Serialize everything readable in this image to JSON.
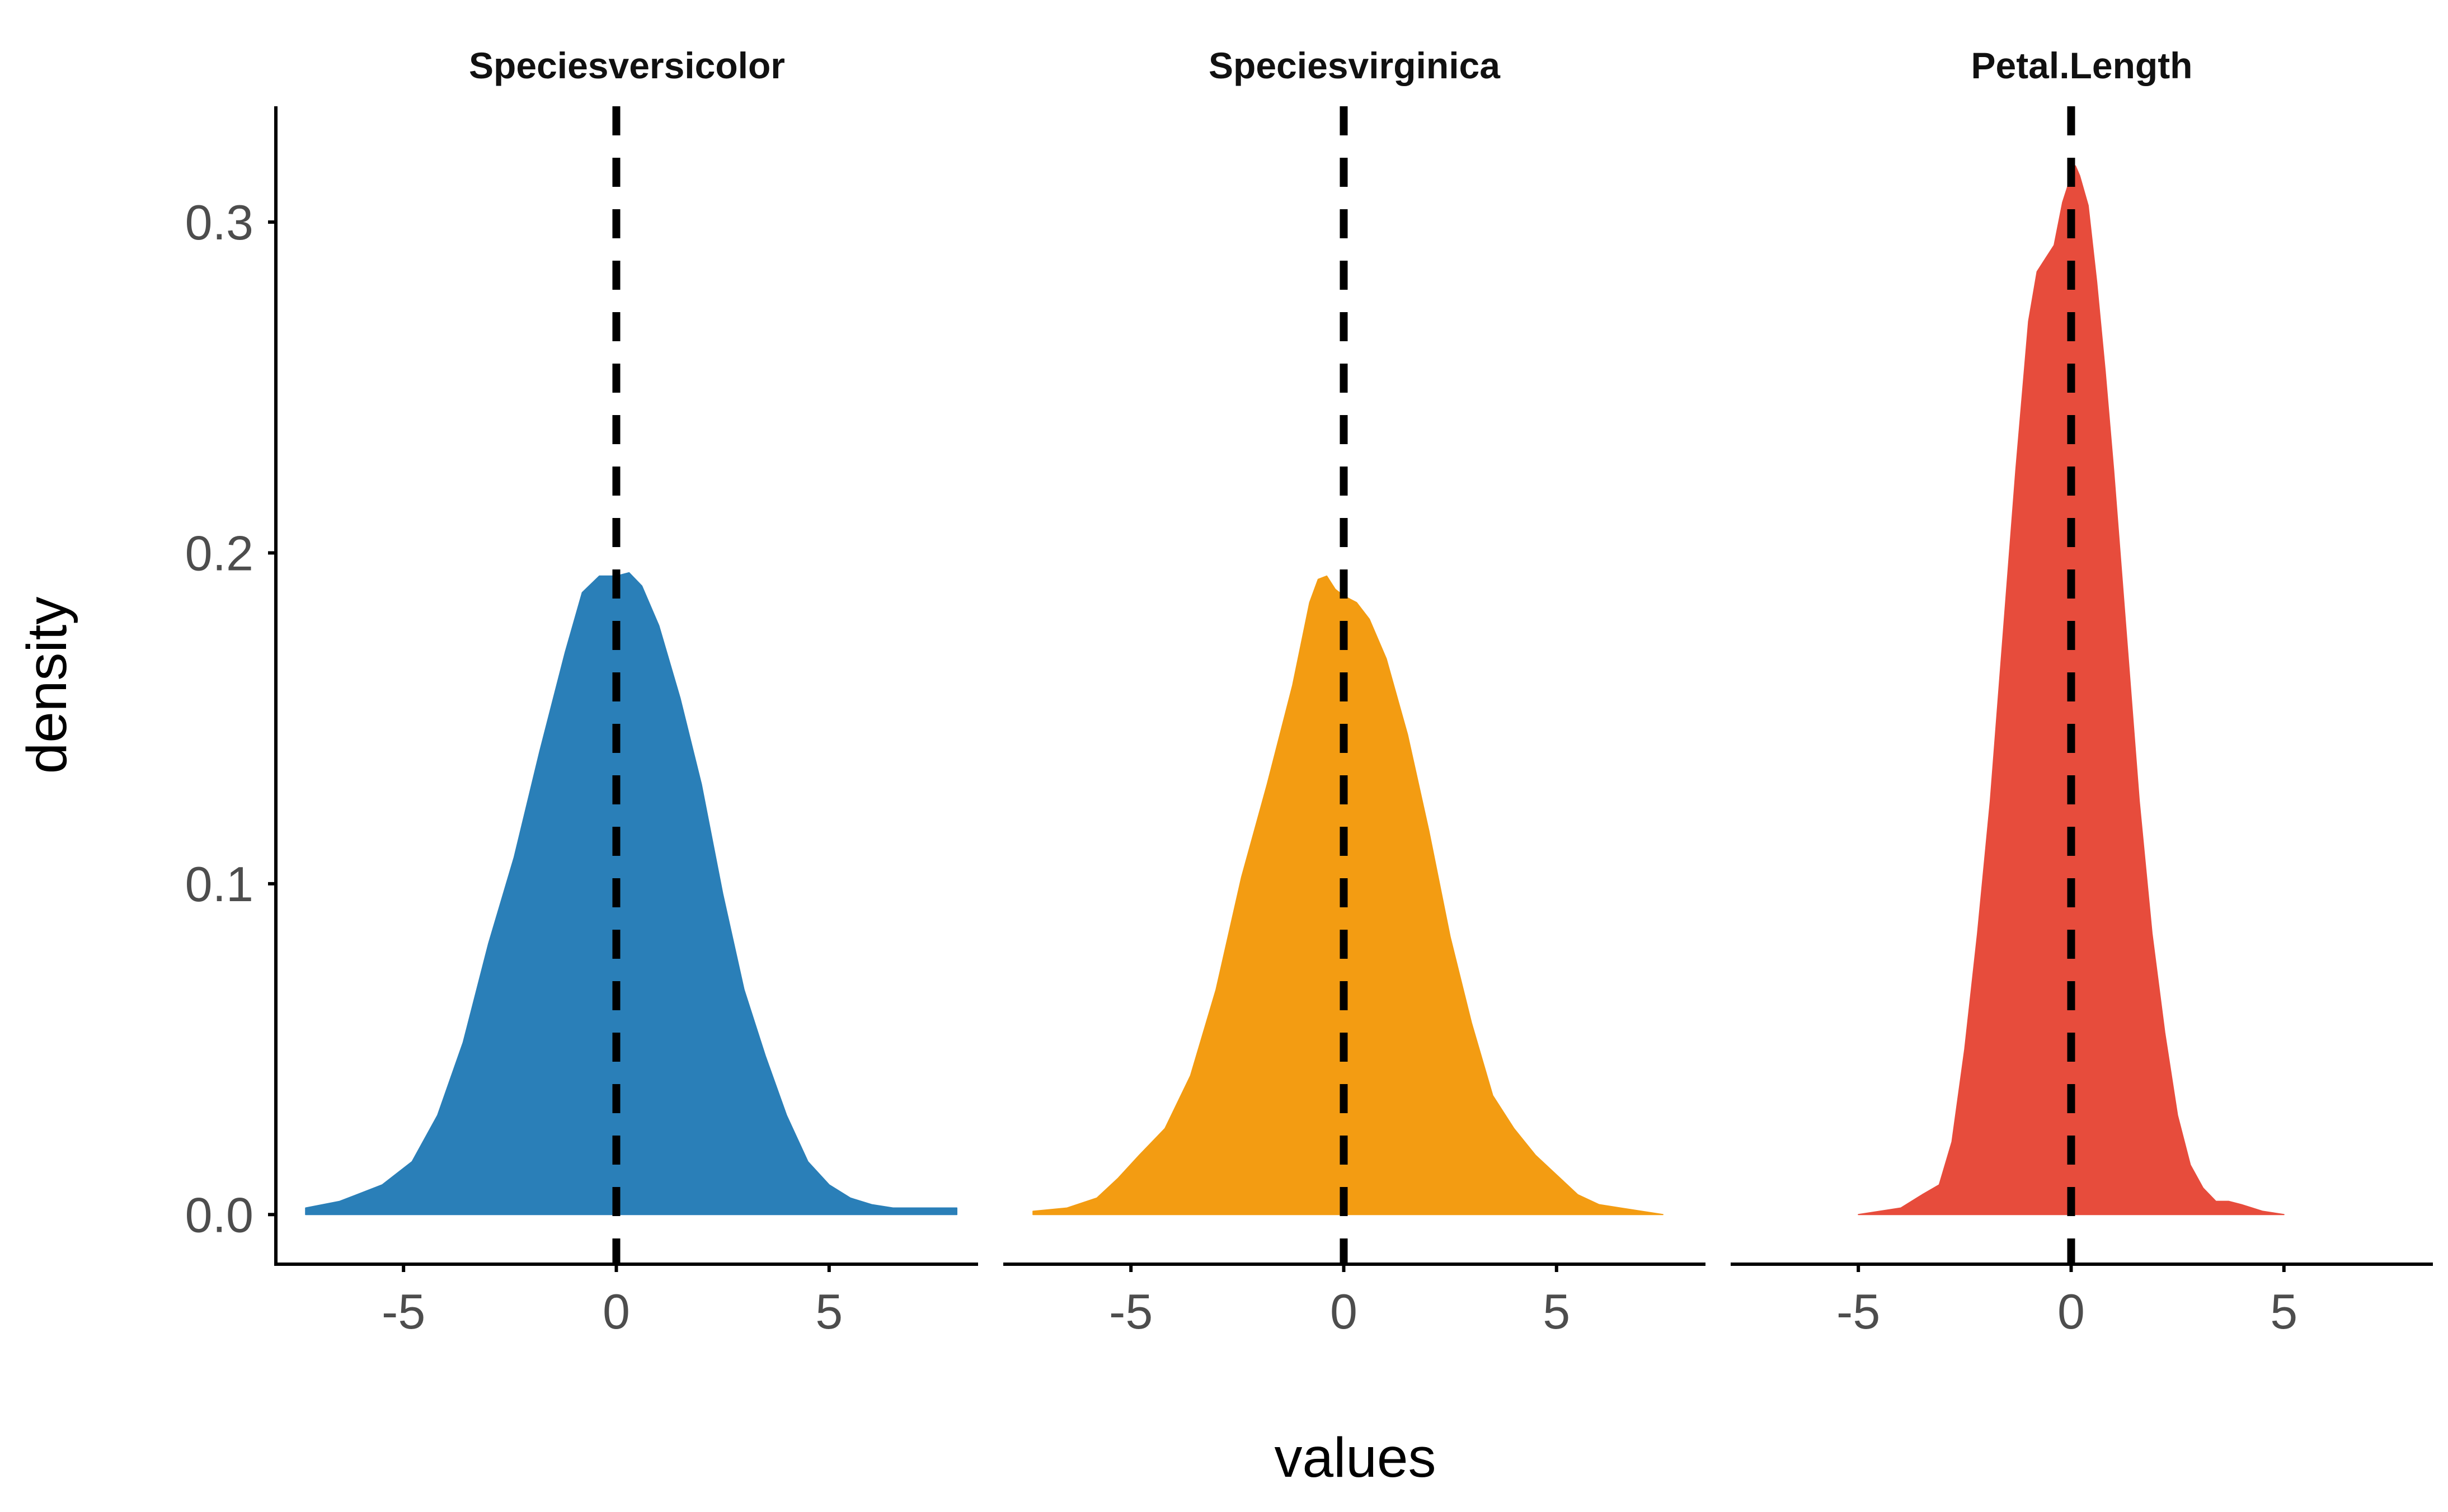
{
  "chart_data": {
    "type": "area",
    "xlabel": "values",
    "ylabel": "density",
    "xlim": [
      -8,
      8.5
    ],
    "ylim": [
      -0.015,
      0.335
    ],
    "x_ticks": [
      -5,
      0,
      5
    ],
    "y_ticks": [
      0.0,
      0.1,
      0.2,
      0.3
    ],
    "x_tick_labels": [
      "-5",
      "0",
      "5"
    ],
    "y_tick_labels": [
      "0.0",
      "0.1",
      "0.2",
      "0.3"
    ],
    "reference_line": {
      "x": 0,
      "style": "dashed",
      "color": "#000000"
    },
    "grid": false,
    "legend": "none",
    "panels": [
      {
        "title": "Speciesversicolor",
        "color": "#2a7fb8",
        "x": [
          -7.3,
          -6.5,
          -5.5,
          -4.8,
          -4.2,
          -3.6,
          -3.0,
          -2.4,
          -1.8,
          -1.2,
          -0.8,
          -0.4,
          0.0,
          0.3,
          0.6,
          1.0,
          1.5,
          2.0,
          2.5,
          3.0,
          3.5,
          4.0,
          4.5,
          5.0,
          5.5,
          6.0,
          6.5,
          7.0,
          7.5,
          8.0
        ],
        "y": [
          0.002,
          0.004,
          0.009,
          0.016,
          0.03,
          0.052,
          0.082,
          0.108,
          0.14,
          0.17,
          0.188,
          0.193,
          0.193,
          0.194,
          0.19,
          0.178,
          0.156,
          0.13,
          0.097,
          0.068,
          0.048,
          0.03,
          0.016,
          0.009,
          0.005,
          0.003,
          0.002,
          0.002,
          0.002,
          0.002
        ]
      },
      {
        "title": "Speciesvirginica",
        "color": "#f39c12",
        "x": [
          -7.3,
          -6.5,
          -5.8,
          -5.3,
          -4.8,
          -4.2,
          -3.6,
          -3.0,
          -2.4,
          -1.8,
          -1.2,
          -0.8,
          -0.6,
          -0.4,
          -0.2,
          0.0,
          0.3,
          0.6,
          1.0,
          1.5,
          2.0,
          2.5,
          3.0,
          3.5,
          4.0,
          4.5,
          5.0,
          5.5,
          6.0,
          6.5,
          7.0,
          7.5
        ],
        "y": [
          0.001,
          0.002,
          0.005,
          0.011,
          0.018,
          0.026,
          0.042,
          0.068,
          0.102,
          0.13,
          0.16,
          0.185,
          0.192,
          0.193,
          0.189,
          0.187,
          0.185,
          0.18,
          0.168,
          0.145,
          0.116,
          0.084,
          0.058,
          0.036,
          0.026,
          0.018,
          0.012,
          0.006,
          0.003,
          0.002,
          0.001,
          0.0
        ]
      },
      {
        "title": "Petal.Length",
        "color": "#e74c3c",
        "x": [
          -5.0,
          -4.5,
          -4.0,
          -3.5,
          -3.1,
          -2.8,
          -2.5,
          -2.2,
          -1.9,
          -1.6,
          -1.3,
          -1.0,
          -0.8,
          -0.6,
          -0.4,
          -0.2,
          0.0,
          0.1,
          0.2,
          0.4,
          0.6,
          0.8,
          1.0,
          1.3,
          1.6,
          1.9,
          2.2,
          2.5,
          2.8,
          3.1,
          3.4,
          3.7,
          4.0,
          4.5,
          5.0
        ],
        "y": [
          0.0,
          0.001,
          0.002,
          0.006,
          0.009,
          0.022,
          0.05,
          0.085,
          0.125,
          0.175,
          0.225,
          0.27,
          0.285,
          0.289,
          0.293,
          0.306,
          0.314,
          0.317,
          0.314,
          0.305,
          0.282,
          0.255,
          0.225,
          0.175,
          0.125,
          0.085,
          0.055,
          0.03,
          0.015,
          0.008,
          0.004,
          0.004,
          0.003,
          0.001,
          0.0
        ]
      }
    ]
  }
}
